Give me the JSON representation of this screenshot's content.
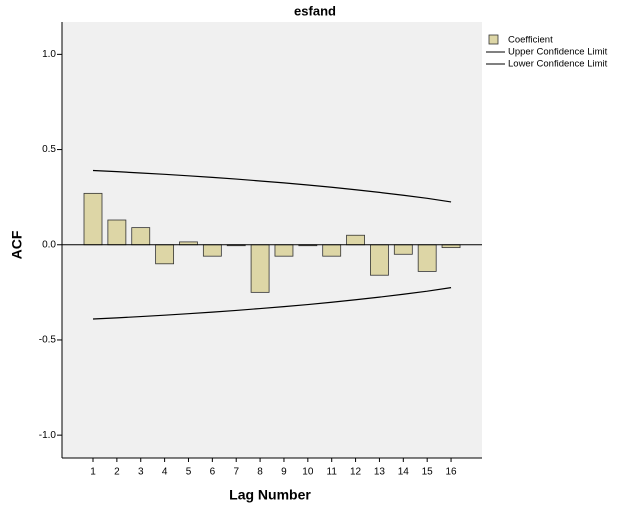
{
  "chart_data": {
    "type": "bar",
    "title": "esfand",
    "x_label": "Lag Number",
    "y_label": "ACF",
    "categories": [
      "1",
      "2",
      "3",
      "4",
      "5",
      "6",
      "7",
      "8",
      "9",
      "10",
      "11",
      "12",
      "13",
      "14",
      "15",
      "16"
    ],
    "series": [
      {
        "name": "Coefficient",
        "type": "bar",
        "color": "#ddd6a6",
        "values": [
          0.27,
          0.13,
          0.09,
          -0.1,
          0.015,
          -0.06,
          -0.005,
          -0.25,
          -0.06,
          -0.005,
          -0.06,
          0.05,
          -0.16,
          -0.05,
          -0.14,
          -0.015
        ]
      },
      {
        "name": "Upper Confidence Limit",
        "type": "line",
        "color": "#000000",
        "values": [
          0.39,
          0.384,
          0.377,
          0.37,
          0.362,
          0.354,
          0.345,
          0.335,
          0.325,
          0.314,
          0.302,
          0.289,
          0.275,
          0.26,
          0.244,
          0.225
        ]
      },
      {
        "name": "Lower Confidence Limit",
        "type": "line",
        "color": "#000000",
        "values": [
          -0.39,
          -0.384,
          -0.377,
          -0.37,
          -0.362,
          -0.354,
          -0.345,
          -0.335,
          -0.325,
          -0.314,
          -0.302,
          -0.289,
          -0.275,
          -0.26,
          -0.244,
          -0.225
        ]
      }
    ],
    "ylim": [
      -1.12,
      1.17
    ],
    "yticks": [
      {
        "value": -1,
        "label": "-1.0"
      },
      -0.5,
      {
        "value": 0,
        "label": "0.0"
      },
      0.5,
      {
        "value": 1,
        "label": "1.0"
      }
    ],
    "grid": false,
    "legend": "top-right"
  }
}
